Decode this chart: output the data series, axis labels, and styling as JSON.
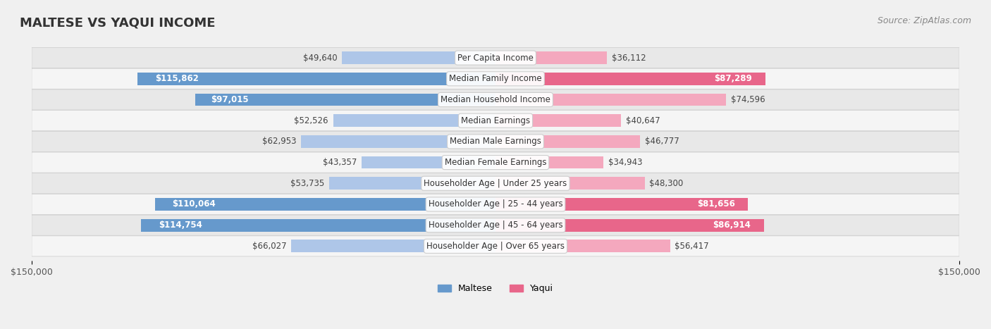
{
  "title": "MALTESE VS YAQUI INCOME",
  "source": "Source: ZipAtlas.com",
  "categories": [
    "Per Capita Income",
    "Median Family Income",
    "Median Household Income",
    "Median Earnings",
    "Median Male Earnings",
    "Median Female Earnings",
    "Householder Age | Under 25 years",
    "Householder Age | 25 - 44 years",
    "Householder Age | 45 - 64 years",
    "Householder Age | Over 65 years"
  ],
  "maltese_values": [
    49640,
    115862,
    97015,
    52526,
    62953,
    43357,
    53735,
    110064,
    114754,
    66027
  ],
  "yaqui_values": [
    36112,
    87289,
    74596,
    40647,
    46777,
    34943,
    48300,
    81656,
    86914,
    56417
  ],
  "maltese_labels": [
    "$49,640",
    "$115,862",
    "$97,015",
    "$52,526",
    "$62,953",
    "$43,357",
    "$53,735",
    "$110,064",
    "$114,754",
    "$66,027"
  ],
  "yaqui_labels": [
    "$36,112",
    "$87,289",
    "$74,596",
    "$40,647",
    "$46,777",
    "$34,943",
    "$48,300",
    "$81,656",
    "$86,914",
    "$56,417"
  ],
  "max_value": 150000,
  "maltese_color_light": "#aec6e8",
  "maltese_color_dark": "#6699cc",
  "yaqui_color_light": "#f4a8be",
  "yaqui_color_dark": "#e8668a",
  "label_inside_threshold": 80000,
  "background_color": "#f0f0f0",
  "row_bg_color": "#e8e8e8",
  "row_bg_color2": "#ffffff"
}
